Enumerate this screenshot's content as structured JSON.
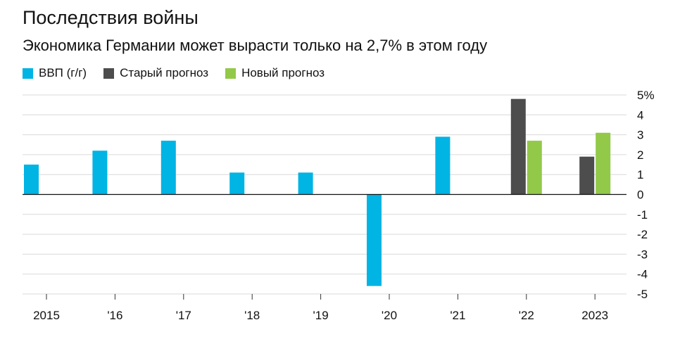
{
  "header": {
    "title": "Последствия войны",
    "subtitle": "Экономика Германии может вырасти только на 2,7% в этом году"
  },
  "chart_data": {
    "type": "bar",
    "categories": [
      "2015",
      "'16",
      "'17",
      "'18",
      "'19",
      "'20",
      "'21",
      "'22",
      "2023"
    ],
    "series": [
      {
        "name": "ВВП (г/г)",
        "color": "#00b4e4",
        "values": [
          1.5,
          2.2,
          2.7,
          1.1,
          1.1,
          -4.6,
          2.9,
          null,
          null
        ]
      },
      {
        "name": "Старый прогноз",
        "color": "#4d4d4d",
        "values": [
          null,
          null,
          null,
          null,
          null,
          null,
          null,
          4.8,
          1.9
        ]
      },
      {
        "name": "Новый прогноз",
        "color": "#93c949",
        "values": [
          null,
          null,
          null,
          null,
          null,
          null,
          null,
          2.7,
          3.1
        ]
      }
    ],
    "y_ticks": [
      "5%",
      "4",
      "3",
      "2",
      "1",
      "0",
      "-1",
      "-2",
      "-3",
      "-4",
      "-5"
    ],
    "y_tick_values": [
      5,
      4,
      3,
      2,
      1,
      0,
      -1,
      -2,
      -3,
      -4,
      -5
    ],
    "ylim": [
      -5,
      5
    ],
    "grid": true,
    "legend_position": "top-left",
    "y_axis_side": "right"
  }
}
